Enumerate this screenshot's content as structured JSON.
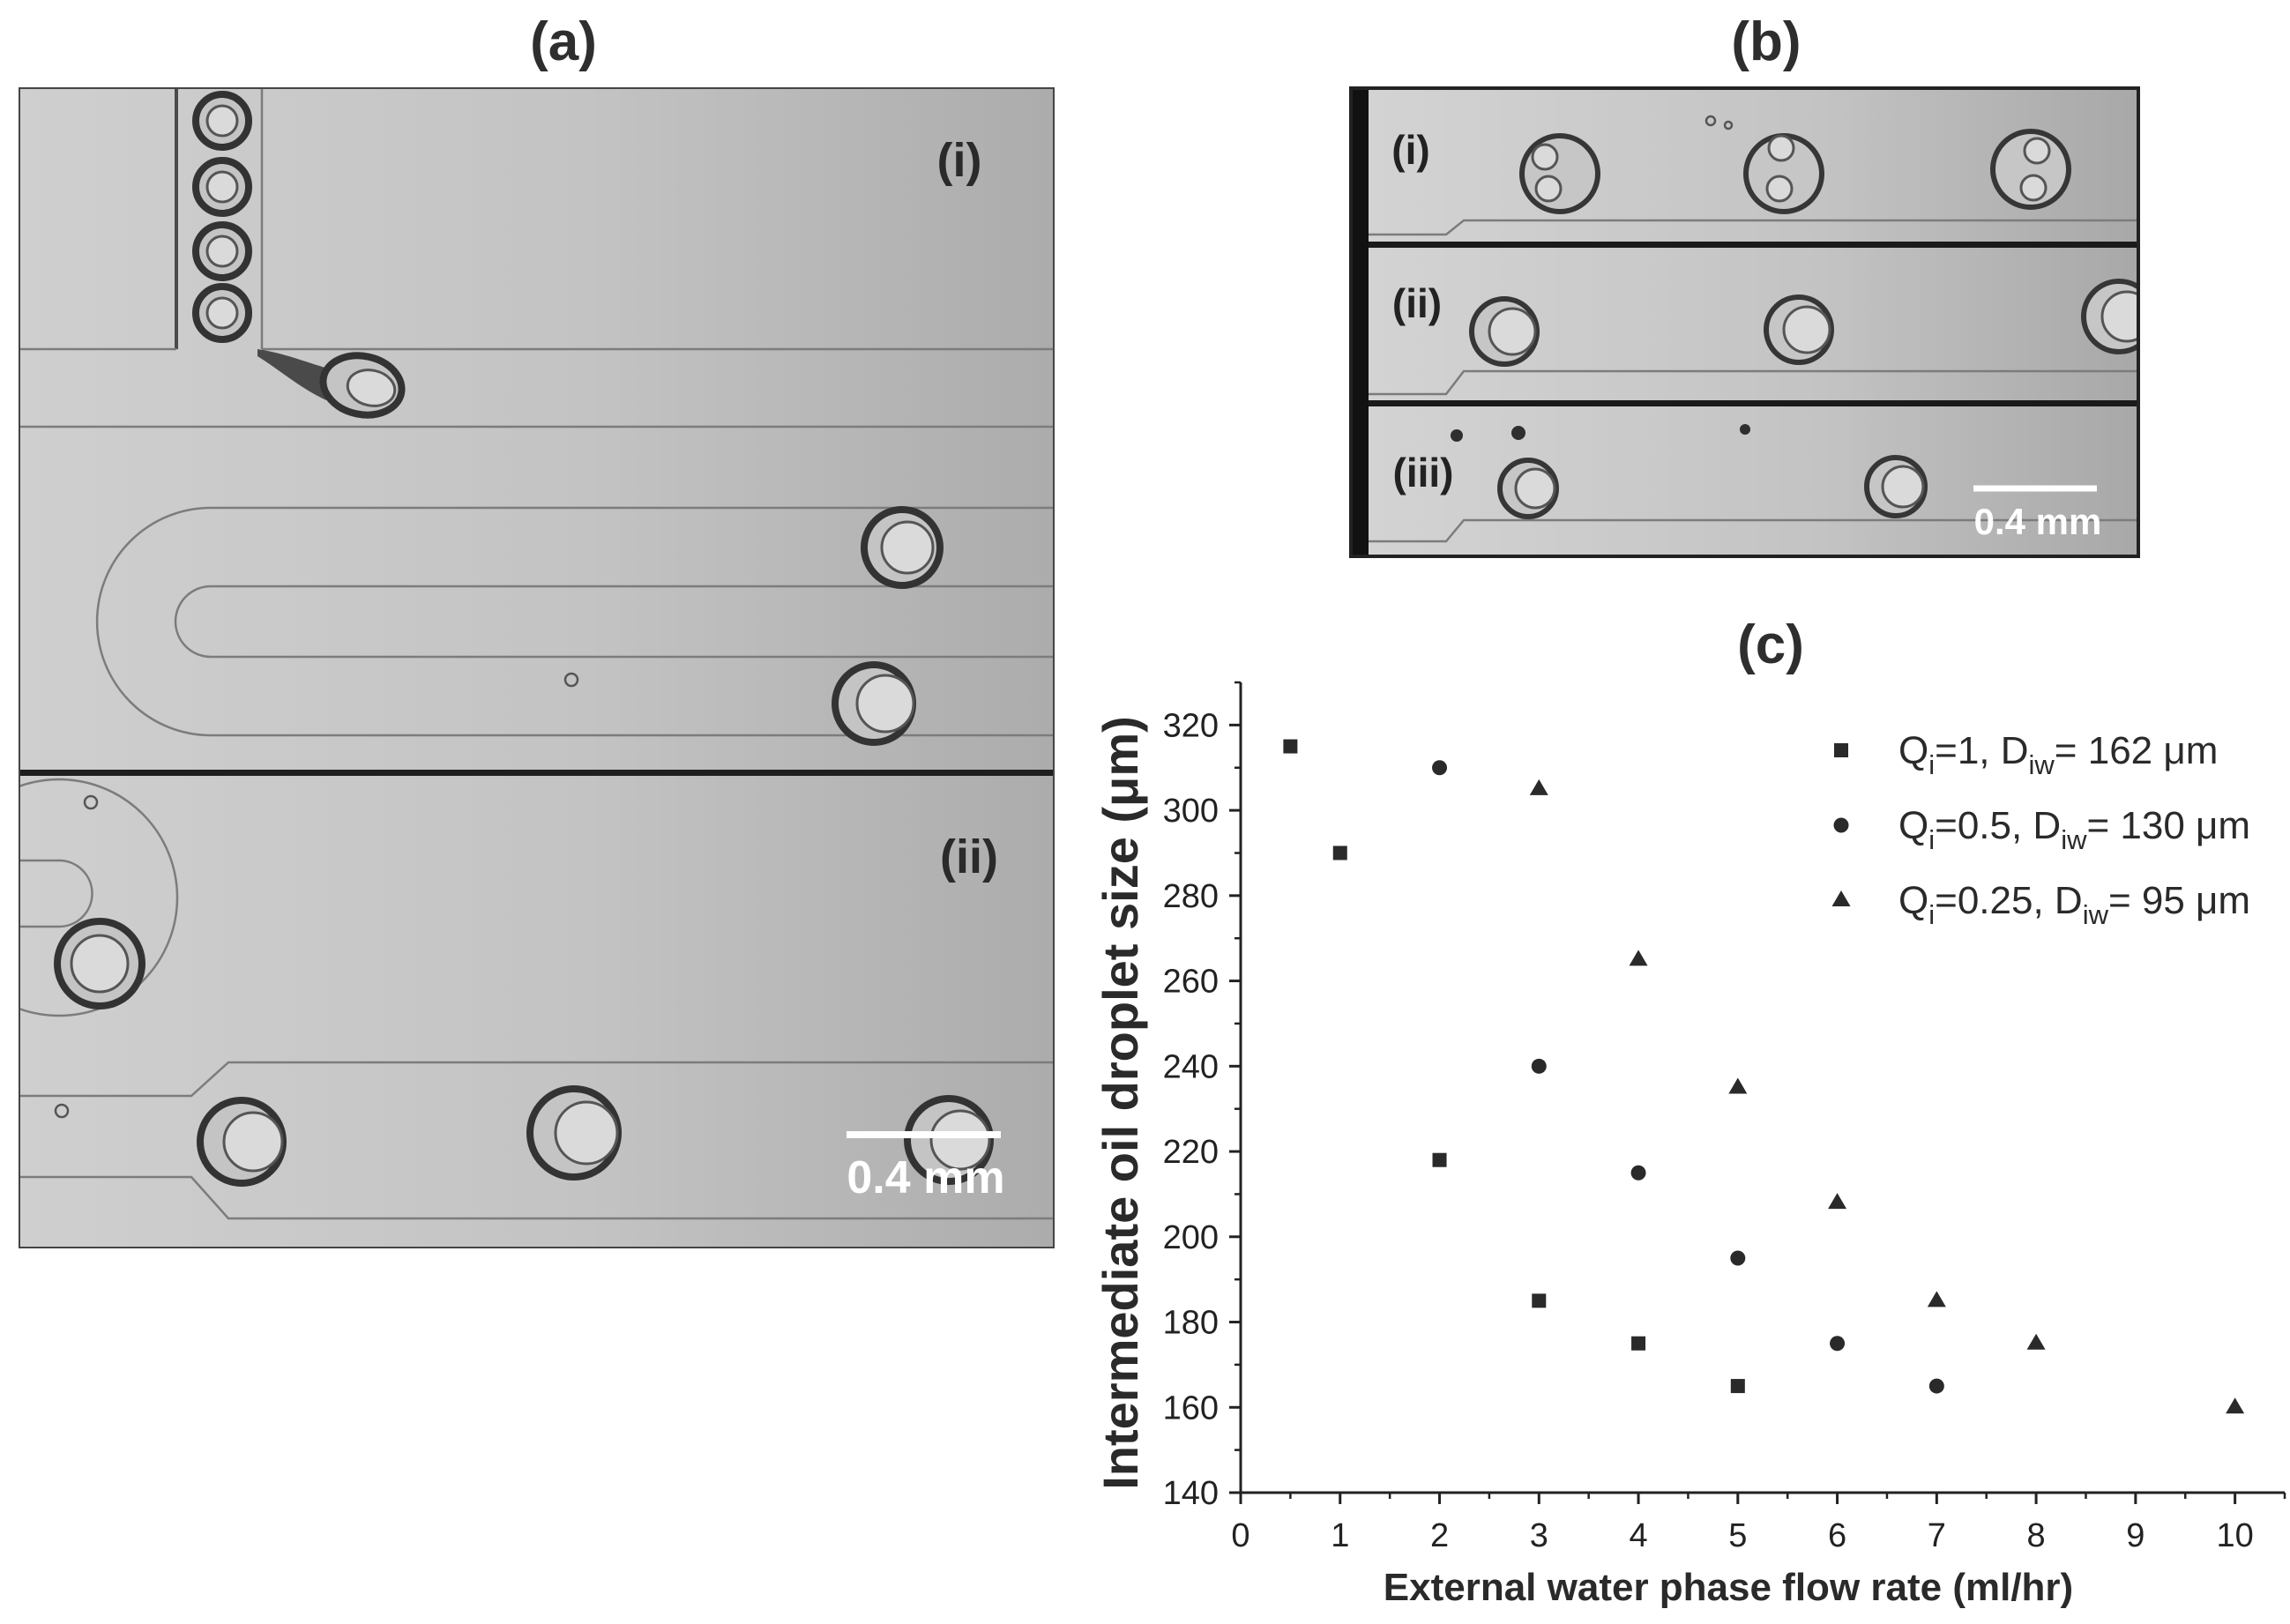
{
  "panels": {
    "a": {
      "label": "(a)",
      "i": "(i)",
      "ii": "(ii)",
      "scale": "0.4 mm"
    },
    "b": {
      "label": "(b)",
      "i": "(i)",
      "ii": "(ii)",
      "iii": "(iii)",
      "scale": "0.4 mm"
    },
    "c": {
      "label": "(c)"
    }
  },
  "colors": {
    "marker": "#2a2a2a",
    "axis": "#222222",
    "scale_bar": "#ffffff"
  },
  "chart_data": {
    "type": "scatter",
    "xlabel": "External water phase flow rate (ml/hr)",
    "ylabel": "Intermediate oil droplet size (μm)",
    "xlim": [
      0,
      10.5
    ],
    "ylim": [
      140,
      330
    ],
    "xticks": [
      0,
      1,
      2,
      3,
      4,
      5,
      6,
      7,
      8,
      9,
      10
    ],
    "yticks": [
      140,
      160,
      180,
      200,
      220,
      240,
      260,
      280,
      300,
      320
    ],
    "minor_ticks": {
      "x": 0.5,
      "y": 10
    },
    "grid": false,
    "legend_position": "top-right",
    "series": [
      {
        "marker": "square",
        "label": [
          {
            "text": "Q"
          },
          {
            "text": "i",
            "sub": true
          },
          {
            "text": "=1, D"
          },
          {
            "text": "iw",
            "sub": true
          },
          {
            "text": "= 162 μm"
          }
        ],
        "x": [
          0.5,
          1,
          2,
          3,
          4,
          5
        ],
        "y": [
          315,
          290,
          218,
          185,
          175,
          165
        ]
      },
      {
        "marker": "circle",
        "label": [
          {
            "text": "Q"
          },
          {
            "text": "i",
            "sub": true
          },
          {
            "text": "=0.5, D"
          },
          {
            "text": "iw",
            "sub": true
          },
          {
            "text": "= 130 μm"
          }
        ],
        "x": [
          2,
          3,
          4,
          5,
          6,
          7
        ],
        "y": [
          310,
          240,
          215,
          195,
          175,
          165
        ]
      },
      {
        "marker": "triangle",
        "label": [
          {
            "text": "Q"
          },
          {
            "text": "i",
            "sub": true
          },
          {
            "text": "=0.25, D"
          },
          {
            "text": "iw",
            "sub": true
          },
          {
            "text": "= 95 μm"
          }
        ],
        "x": [
          3,
          4,
          5,
          6,
          7,
          8,
          10
        ],
        "y": [
          305,
          265,
          235,
          208,
          185,
          175,
          160
        ]
      }
    ]
  }
}
